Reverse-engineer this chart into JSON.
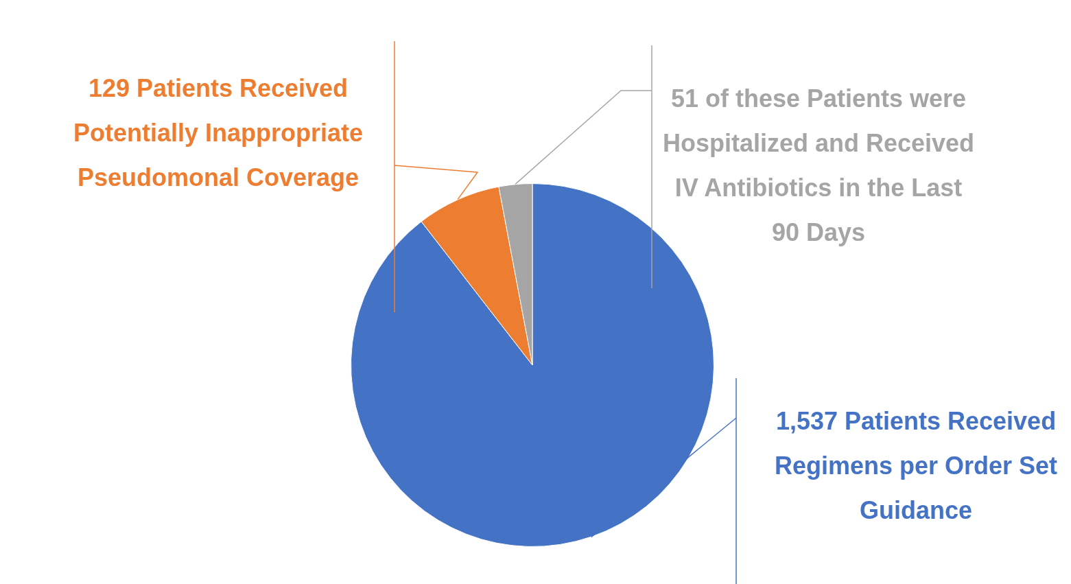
{
  "chart_data": {
    "type": "pie",
    "categories": [
      "1,537 Patients Received Regimens per Order Set Guidance",
      "129 Patients Received Potentially Inappropriate Pseudomonal Coverage",
      "51 of these Patients were Hospitalized and Received IV Antibiotics in the Last 90 Days"
    ],
    "values": [
      1537,
      129,
      51
    ],
    "colors": [
      "#4472c4",
      "#ed7d31",
      "#a5a5a5"
    ],
    "legend": false
  }
}
